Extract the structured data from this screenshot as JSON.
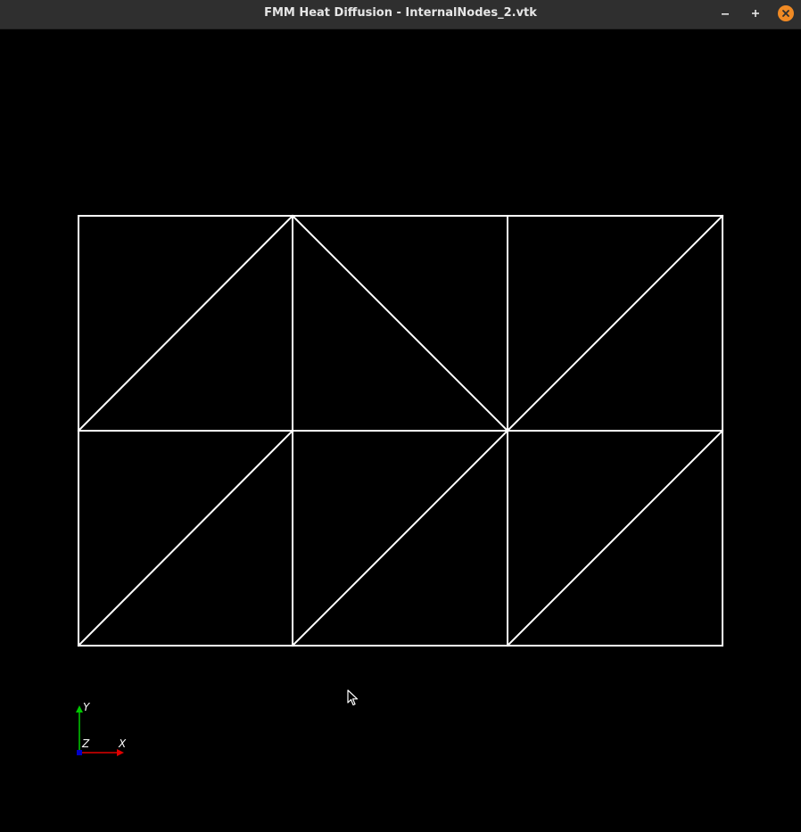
{
  "window": {
    "title": "FMM Heat Diffusion - InternalNodes_2.vtk"
  },
  "titlebar_buttons": {
    "minimize_icon": "minimize-icon",
    "maximize_icon": "maximize-icon",
    "close_icon": "close-icon",
    "close_color": "#f08a24"
  },
  "mesh": {
    "line_color": "#ffffff",
    "background_color": "#000000"
  },
  "axes": {
    "y_label": "Y",
    "z_label": "Z",
    "x_label": "X",
    "y_color": "#00c800",
    "x_color": "#e00000",
    "z_color": "#0000c8"
  },
  "cursor": {
    "icon": "mouse-pointer-icon"
  }
}
